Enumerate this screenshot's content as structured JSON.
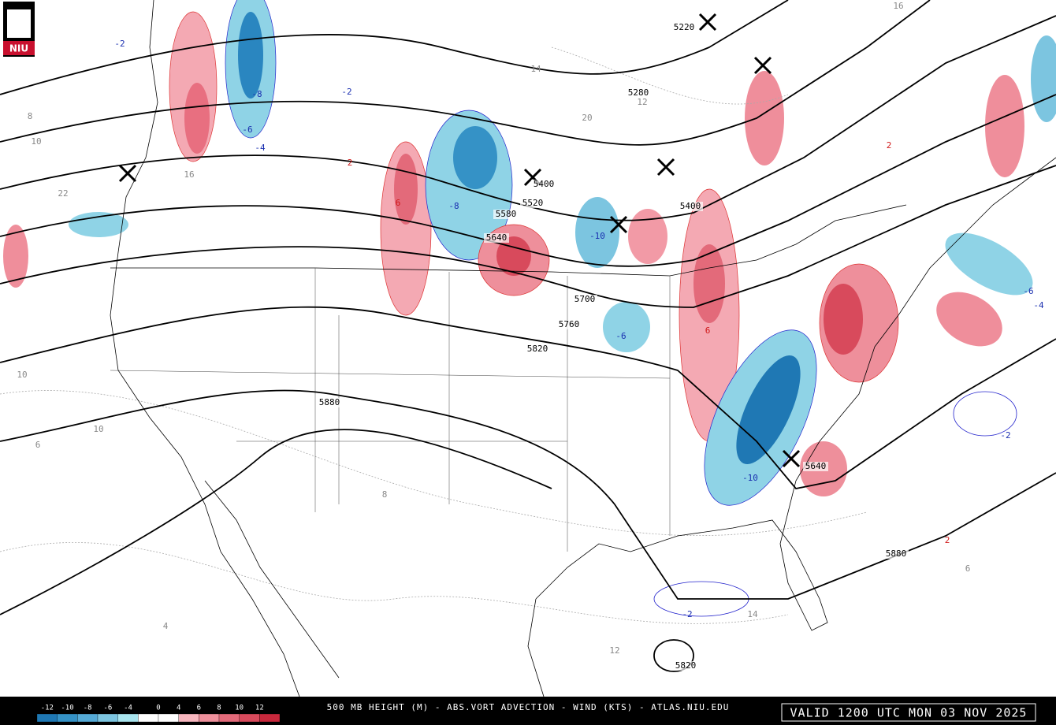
{
  "logo": "NIU",
  "footer": {
    "title": "500 MB HEIGHT (M) - ABS.VORT ADVECTION - WIND (KTS) - ATLAS.NIU.EDU",
    "valid": "VALID 1200 UTC MON 03 NOV 2025"
  },
  "colorbar": {
    "labels": [
      -12,
      -10,
      -8,
      -6,
      -4,
      0,
      4,
      6,
      8,
      10,
      12
    ],
    "colors": [
      "#1f78b4",
      "#3592c6",
      "#55aad6",
      "#7cc5e0",
      "#a8e4ee",
      "#ffffff",
      "#ffffff",
      "#f7b6be",
      "#ee8f9b",
      "#e36a7a",
      "#d84a5c",
      "#c8283c"
    ]
  },
  "height_labels": [
    5220,
    5280,
    5400,
    5400,
    5520,
    5580,
    5640,
    5700,
    5760,
    5820,
    5880,
    5880,
    5820,
    5640
  ],
  "advection_labels": [
    -2,
    -8,
    -6,
    -4,
    2,
    -2,
    6,
    -8,
    -10,
    -6,
    6,
    -6,
    -4,
    -2,
    2,
    -2,
    -10,
    2
  ],
  "vorticity_labels": [
    10,
    8,
    22,
    16,
    14,
    12,
    20,
    10,
    6,
    8,
    4,
    14,
    12,
    6,
    10,
    16
  ]
}
